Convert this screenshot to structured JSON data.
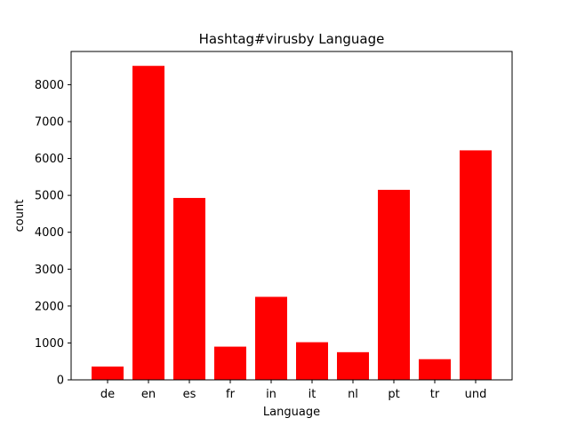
{
  "chart_data": {
    "type": "bar",
    "title": "Hashtag#virusby Language",
    "xlabel": "Language",
    "ylabel": "count",
    "categories": [
      "de",
      "en",
      "es",
      "fr",
      "in",
      "it",
      "nl",
      "pt",
      "tr",
      "und"
    ],
    "values": [
      360,
      8510,
      4930,
      900,
      2250,
      1020,
      750,
      5150,
      560,
      6220
    ],
    "ylim": [
      0,
      8900
    ],
    "yticks": [
      0,
      1000,
      2000,
      3000,
      4000,
      5000,
      6000,
      7000,
      8000
    ],
    "bar_color": "#ff0000",
    "grid": false,
    "legend": "none"
  }
}
